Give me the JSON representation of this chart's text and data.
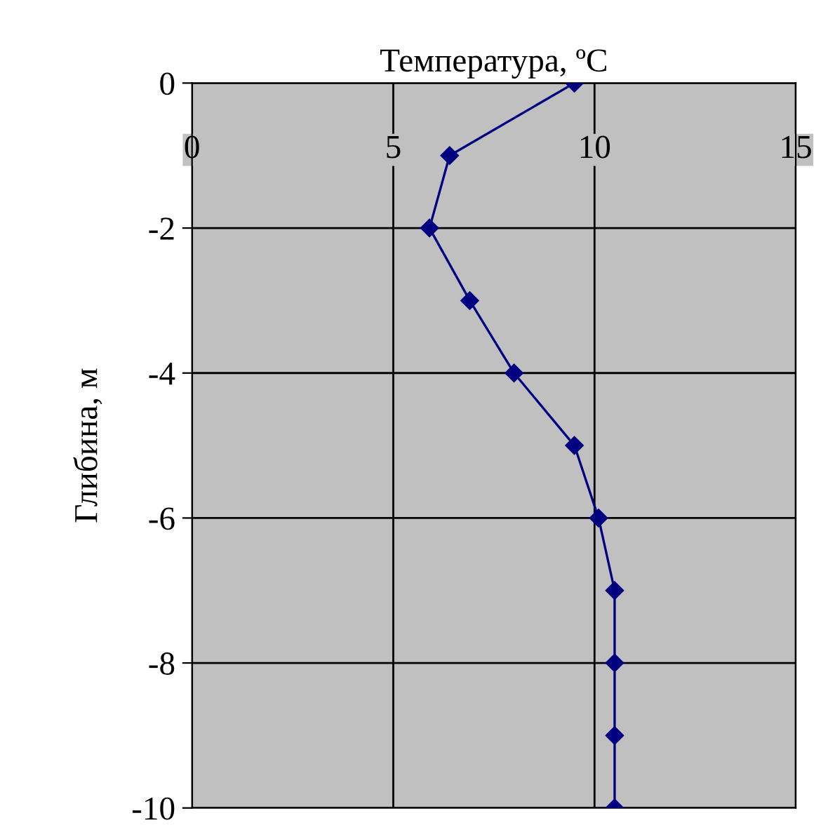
{
  "chart_data": {
    "type": "line",
    "xlabel": "Температура, ºC",
    "ylabel": "Глибина, м",
    "x": [
      9.5,
      6.4,
      5.9,
      6.9,
      8.0,
      9.5,
      10.1,
      10.5,
      10.5,
      10.5,
      10.5
    ],
    "series": [
      {
        "color": "#000080",
        "values": [
          0,
          -1,
          -2,
          -3,
          -4,
          -5,
          -6,
          -7,
          -8,
          -9,
          -10
        ]
      }
    ],
    "xlim": [
      0,
      15
    ],
    "xticks": [
      0,
      5,
      10,
      15
    ],
    "ylim": [
      -10,
      0
    ],
    "yticks": [
      -10,
      -8,
      -6,
      -4,
      -2,
      0
    ],
    "grid": true,
    "marker": "diamond",
    "line_style": "solid"
  }
}
